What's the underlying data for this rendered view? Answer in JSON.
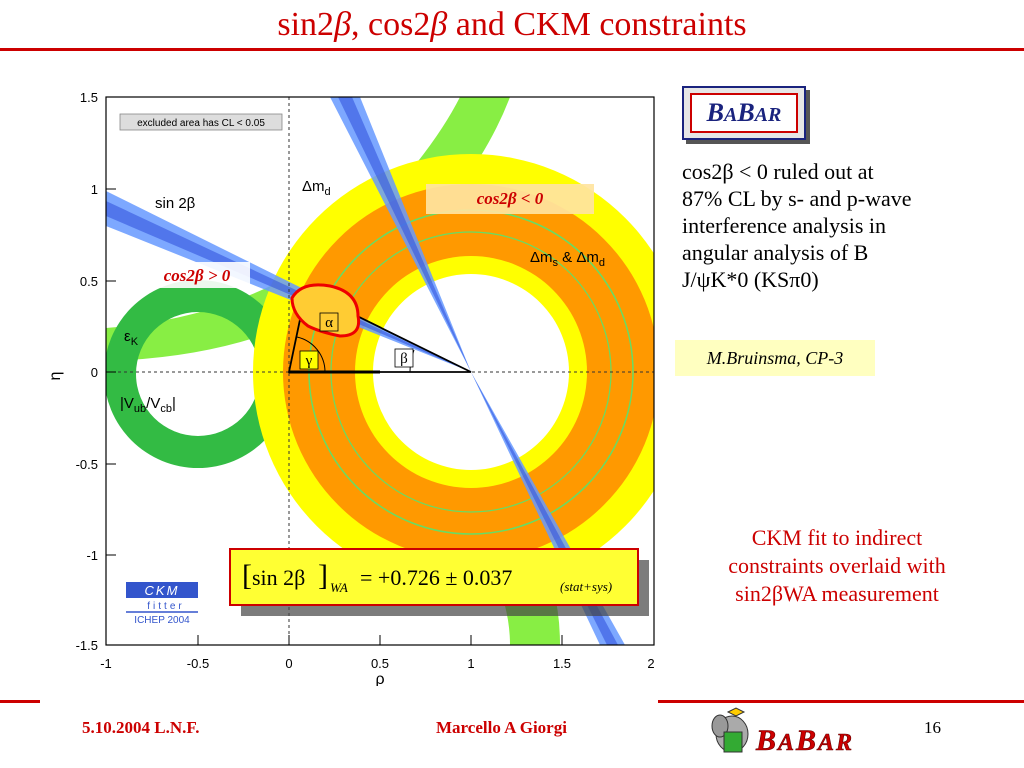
{
  "slide": {
    "title_prefix": "sin2",
    "title_mid1": "β",
    "title_mid2": ", cos2",
    "title_mid3": "β",
    "title_suffix": " and CKM constraints",
    "page_number": "16"
  },
  "footer": {
    "date_venue": "5.10.2004 L.N.F.",
    "author": "Marcello A Giorgi"
  },
  "babar_box": {
    "b1": "B",
    "a1": "A",
    "b2": "B",
    "a2": "A",
    "r": "R"
  },
  "description": {
    "line1": "cos2β < 0 ruled out at",
    "line2": "87% CL by s- and p-wave",
    "line3": "interference analysis in",
    "line4": "angular analysis of B",
    "line5": "J/ψK*0 (KSπ0)"
  },
  "reference": "M.Bruinsma, CP-3",
  "fit_note": {
    "line1": "CKM fit to indirect",
    "line2": "constraints overlaid with",
    "line3": "sin2βWA measurement"
  },
  "colors": {
    "title_red": "#cc0000",
    "ms_md_orange": "#ff9900",
    "md_yellow": "#ffff00",
    "eps_green": "#88ee44",
    "vub_green": "#33bb44",
    "sin2b_blue": "#6699ff",
    "formula_bg": "#ffff33"
  },
  "plot": {
    "note": "excluded area has CL < 0.05",
    "xlabel": "ρ",
    "ylabel": "η",
    "x_ticks": [
      "-1",
      "-0.5",
      "0",
      "0.5",
      "1",
      "1.5",
      "2"
    ],
    "y_ticks": [
      "1.5",
      "1",
      "0.5",
      "0",
      "-0.5",
      "-1",
      "-1.5"
    ],
    "labels": {
      "sin2b": "sin 2β",
      "dmd": "Δm",
      "dmd_sub": "d",
      "dms": "Δm",
      "dms_sub": "s",
      "dms_amp": " & Δm",
      "dms_sub2": "d",
      "epsk": "ε",
      "epsk_sub": "K",
      "vub": "|V",
      "vub_sub1": "ub",
      "vub_mid": "/V",
      "vub_sub2": "cb",
      "vub_end": "|",
      "alpha": "α",
      "beta": "β",
      "gamma": "γ",
      "cos_neg": "cos2β < 0",
      "cos_pos": "cos2β > 0"
    },
    "formula": {
      "lhs": "sin 2β",
      "sub": "WA",
      "rhs": "= +0.726 ± 0.037",
      "stat": "(stat+sys)"
    },
    "ckm_logo": {
      "ckm": "CKM",
      "fitter": "fitter",
      "conf": "ICHEP 2004"
    }
  }
}
